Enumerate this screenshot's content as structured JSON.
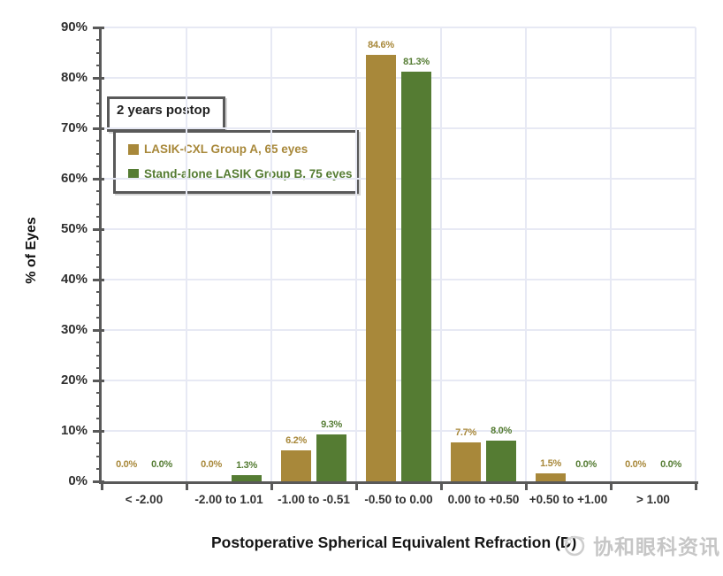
{
  "watermark": {
    "text": "协和眼科资讯",
    "icon": "circle-swoosh-logo",
    "color": "#c6c6c6"
  },
  "annotation": {
    "label": "2 years postop"
  },
  "colors": {
    "series_a": "#a8883a",
    "series_b": "#557c33",
    "grid": "#e7e9f4",
    "axis": "#595959",
    "tick_text": "#303030",
    "category_text": "#333333"
  },
  "chart_data": {
    "type": "bar",
    "title": "",
    "xlabel": "Postoperative Spherical Equivalent Refraction (D)",
    "ylabel": "% of Eyes",
    "categories": [
      "< -2.00",
      "-2.00 to 1.01",
      "-1.00 to -0.51",
      "-0.50 to 0.00",
      "0.00 to +0.50",
      "+0.50 to +1.00",
      "> 1.00"
    ],
    "series": [
      {
        "name": "LASIK-CXL Group A, 65 eyes",
        "color": "#a8883a",
        "values": [
          0.0,
          0.0,
          6.2,
          84.6,
          7.7,
          1.5,
          0.0
        ]
      },
      {
        "name": "Stand-alone LASIK Group B, 75 eyes",
        "color": "#557c33",
        "values": [
          0.0,
          1.3,
          9.3,
          81.3,
          8.0,
          0.0,
          0.0
        ]
      }
    ],
    "value_label_suffix": "%",
    "ylim": [
      0,
      90
    ],
    "ytick_step": 10,
    "ytick_minor_step": 2.5,
    "ytick_label_suffix": "%",
    "grid": true,
    "legend_position": "upper-left",
    "annotation_text": "2 years postop"
  }
}
